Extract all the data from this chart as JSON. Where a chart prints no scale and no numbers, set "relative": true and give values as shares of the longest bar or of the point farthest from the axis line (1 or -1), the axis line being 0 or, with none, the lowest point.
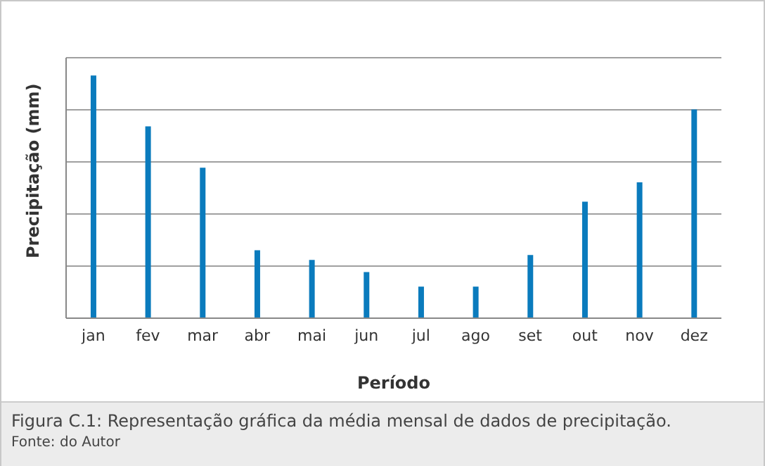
{
  "chart_data": {
    "type": "bar",
    "relative": true,
    "xlabel": "Período",
    "ylabel": "Precipitação (mm)",
    "categories": [
      "jan",
      "fev",
      "mar",
      "abr",
      "mai",
      "jun",
      "jul",
      "ago",
      "set",
      "out",
      "nov",
      "dez"
    ],
    "values": [
      1,
      0.79,
      0.62,
      0.28,
      0.24,
      0.19,
      0.13,
      0.13,
      0.26,
      0.48,
      0.56,
      0.86
    ],
    "color": "#0a7bbd",
    "grid": "y",
    "annotations": [
      "Figura C.1: Representação gráfica da média mensal de dados de precipitação.",
      "Fonte: do Autor"
    ]
  }
}
